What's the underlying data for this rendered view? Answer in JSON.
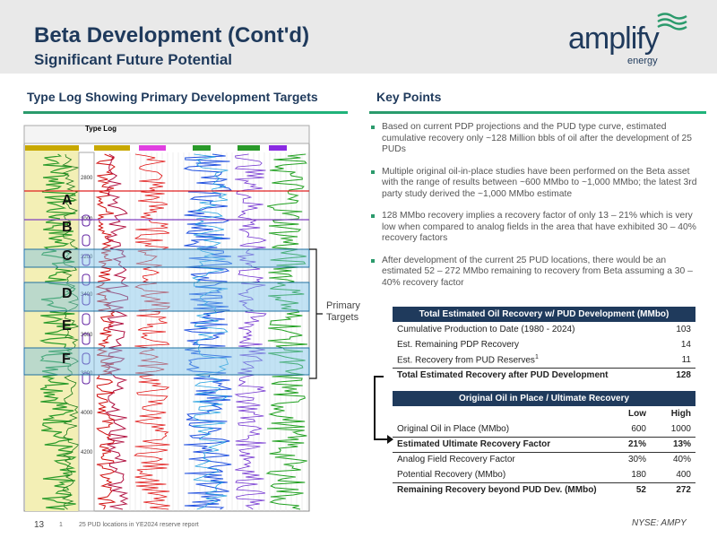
{
  "header": {
    "title": "Beta Development (Cont'd)",
    "subtitle": "Significant Future Potential",
    "logo": "amplify",
    "logo_sub": "energy"
  },
  "left": {
    "heading": "Type Log Showing Primary Development Targets",
    "log_title": "Type Log",
    "depths": [
      "2800",
      "3000",
      "3200",
      "3400",
      "3600",
      "3800",
      "4000",
      "4200"
    ],
    "zones": [
      "A",
      "B",
      "C",
      "D",
      "E",
      "F"
    ],
    "bracket_label": "Primary Targets"
  },
  "right": {
    "heading": "Key Points",
    "bullets": [
      "Based on current PDP projections and the PUD type curve, estimated cumulative recovery only ~128 Million bbls of oil after the development of 25 PUDs",
      "Multiple original oil-in-place studies have been performed on the Beta asset with the range of results between ~600 MMbo to ~1,000 MMbo; the latest 3rd party study derived the ~1,000 MMbo estimate",
      "128 MMbo recovery implies a recovery factor of only 13 – 21% which is very low when compared to analog fields in the area that have exhibited 30 – 40% recovery factors",
      "After development of the current 25 PUD locations, there would be an estimated 52 – 272 MMbo remaining to recovery from Beta assuming a 30 – 40% recovery factor"
    ]
  },
  "table1": {
    "header": "Total Estimated Oil Recovery w/ PUD Development (MMbo)",
    "rows": [
      [
        "Cumulative Production to Date (1980 - 2024)",
        "103"
      ],
      [
        "Est. Remaining PDP Recovery",
        "14"
      ],
      [
        "Est. Recovery from PUD Reserves",
        "11"
      ]
    ],
    "footnote_mark": "1",
    "total": [
      "Total Estimated Recovery after PUD Development",
      "128"
    ]
  },
  "table2": {
    "header": "Original Oil in Place / Ultimate Recovery",
    "columns": [
      "Low",
      "High"
    ],
    "rows": [
      [
        "Original Oil in Place (MMbo)",
        "600",
        "1000"
      ],
      [
        "Estimated Ultimate Recovery Factor",
        "21%",
        "13%"
      ],
      [
        "Analog Field Recovery Factor",
        "30%",
        "40%"
      ],
      [
        "Potential Recovery (MMbo)",
        "180",
        "400"
      ],
      [
        "Remaining Recovery beyond PUD Dev. (MMbo)",
        "52",
        "272"
      ]
    ]
  },
  "footer": {
    "page": "13",
    "note_mark": "1",
    "note": "25 PUD locations in YE2024 reserve report",
    "ticker": "NYSE: AMPY"
  }
}
